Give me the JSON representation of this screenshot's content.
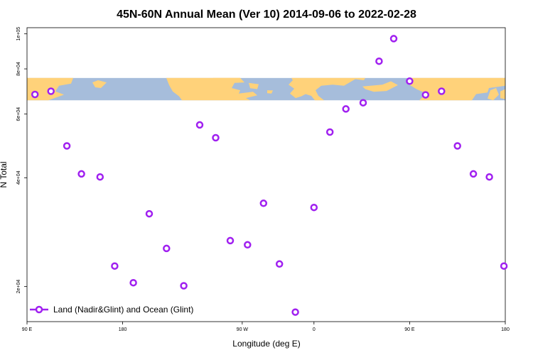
{
  "chart_data": {
    "type": "scatter",
    "title": "45N-60N Annual Mean (Ver 10)   2014-09-06 to 2022-02-28",
    "xlabel": "Longitude (deg E)",
    "ylabel": "N Total",
    "y_scale": "log",
    "xlim": [
      90,
      450
    ],
    "ylim": [
      16000,
      104000
    ],
    "x_ticks": [
      {
        "value": 90,
        "label": "90 E"
      },
      {
        "value": 162,
        "label": "180"
      },
      {
        "value": 252,
        "label": "90 W"
      },
      {
        "value": 306,
        "label": "0"
      },
      {
        "value": 378,
        "label": "90 E"
      },
      {
        "value": 450,
        "label": "180"
      }
    ],
    "y_ticks": [
      {
        "value": 20000,
        "label": "2e+04"
      },
      {
        "value": 40000,
        "label": "4e+04"
      },
      {
        "value": 60000,
        "label": "6e+04"
      },
      {
        "value": 80000,
        "label": "8e+04"
      },
      {
        "value": 100000,
        "label": "1e+05"
      }
    ],
    "series": [
      {
        "name": "Land (Nadir&Glint) and Ocean (Glint)",
        "color": "#a020f0",
        "marker": "open-circle",
        "x": [
          96,
          108,
          120,
          131,
          145,
          156,
          170,
          182,
          195,
          208,
          220,
          232,
          243,
          256,
          268,
          280,
          292,
          306,
          318,
          330,
          343,
          355,
          366,
          378,
          390,
          402,
          414,
          426,
          438,
          449
        ],
        "y": [
          68000,
          69400,
          49000,
          41000,
          40200,
          22800,
          20500,
          31800,
          25500,
          20100,
          56000,
          51600,
          26800,
          26100,
          34000,
          23100,
          17000,
          33100,
          53500,
          62000,
          64500,
          84000,
          97000,
          74000,
          67800,
          69400,
          49000,
          41000,
          40200,
          22800
        ]
      }
    ],
    "legend": {
      "position": "bottom-left"
    },
    "map_strip": {
      "ocean_color": "#a6bddb",
      "land_color": "#ffd27a",
      "y_range": [
        65500,
        75500
      ]
    }
  }
}
